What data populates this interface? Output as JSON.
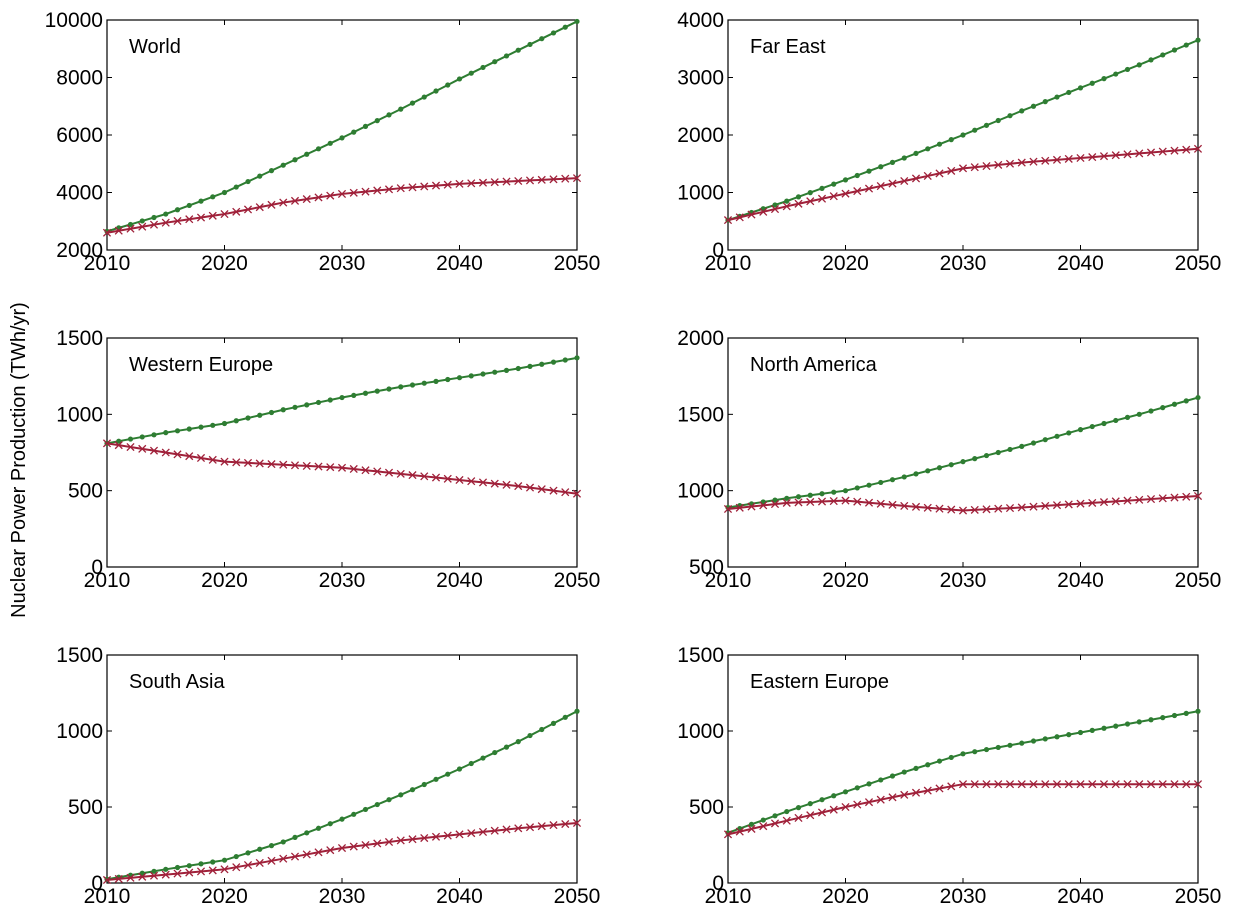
{
  "figure": {
    "ylabel": "Nuclear Power Production (TWh/yr)"
  },
  "colors": {
    "series_a": "#2e7d32",
    "series_b": "#a0213a"
  },
  "chart_data": [
    {
      "type": "line",
      "title": "World",
      "xlim": [
        2010,
        2050
      ],
      "ylim": [
        2000,
        10000
      ],
      "xticks": [
        "2010",
        "2020",
        "2030",
        "2040",
        "2050"
      ],
      "yticks": [
        "2000",
        "4000",
        "6000",
        "8000",
        "10000"
      ],
      "x": [
        2010,
        2015,
        2020,
        2025,
        2030,
        2035,
        2040,
        2045,
        2050
      ],
      "series": [
        {
          "marker": "dot",
          "values": [
            2650,
            3250,
            4000,
            4950,
            5900,
            6900,
            7950,
            8950,
            9950
          ]
        },
        {
          "marker": "x",
          "values": [
            2600,
            2950,
            3250,
            3650,
            3950,
            4150,
            4300,
            4400,
            4500
          ]
        }
      ]
    },
    {
      "type": "line",
      "title": "Far East",
      "xlim": [
        2010,
        2050
      ],
      "ylim": [
        0,
        4000
      ],
      "xticks": [
        "2010",
        "2020",
        "2030",
        "2040",
        "2050"
      ],
      "yticks": [
        "0",
        "1000",
        "2000",
        "3000",
        "4000"
      ],
      "x": [
        2010,
        2015,
        2020,
        2025,
        2030,
        2035,
        2040,
        2045,
        2050
      ],
      "series": [
        {
          "marker": "dot",
          "values": [
            520,
            850,
            1220,
            1600,
            2000,
            2420,
            2820,
            3220,
            3650
          ]
        },
        {
          "marker": "x",
          "values": [
            520,
            760,
            980,
            1200,
            1420,
            1520,
            1600,
            1680,
            1760
          ]
        }
      ]
    },
    {
      "type": "line",
      "title": "Western Europe",
      "xlim": [
        2010,
        2050
      ],
      "ylim": [
        0,
        1500
      ],
      "xticks": [
        "2010",
        "2020",
        "2030",
        "2040",
        "2050"
      ],
      "yticks": [
        "0",
        "500",
        "1000",
        "1500"
      ],
      "x": [
        2010,
        2015,
        2020,
        2025,
        2030,
        2035,
        2040,
        2045,
        2050
      ],
      "series": [
        {
          "marker": "dot",
          "values": [
            810,
            880,
            940,
            1030,
            1110,
            1180,
            1240,
            1300,
            1370
          ]
        },
        {
          "marker": "x",
          "values": [
            810,
            750,
            690,
            670,
            650,
            610,
            570,
            530,
            480
          ]
        }
      ]
    },
    {
      "type": "line",
      "title": "North America",
      "xlim": [
        2010,
        2050
      ],
      "ylim": [
        500,
        2000
      ],
      "xticks": [
        "2010",
        "2020",
        "2030",
        "2040",
        "2050"
      ],
      "yticks": [
        "500",
        "1000",
        "1500",
        "2000"
      ],
      "x": [
        2010,
        2015,
        2020,
        2025,
        2030,
        2035,
        2040,
        2045,
        2050
      ],
      "series": [
        {
          "marker": "dot",
          "values": [
            890,
            950,
            1000,
            1090,
            1190,
            1290,
            1400,
            1500,
            1610
          ]
        },
        {
          "marker": "x",
          "values": [
            880,
            920,
            935,
            900,
            870,
            890,
            915,
            940,
            965
          ]
        }
      ]
    },
    {
      "type": "line",
      "title": "South Asia",
      "xlim": [
        2010,
        2050
      ],
      "ylim": [
        0,
        1500
      ],
      "xticks": [
        "2010",
        "2020",
        "2030",
        "2040",
        "2050"
      ],
      "yticks": [
        "0",
        "500",
        "1000",
        "1500"
      ],
      "x": [
        2010,
        2015,
        2020,
        2025,
        2030,
        2035,
        2040,
        2045,
        2050
      ],
      "series": [
        {
          "marker": "dot",
          "values": [
            25,
            90,
            150,
            270,
            420,
            580,
            750,
            930,
            1130
          ]
        },
        {
          "marker": "x",
          "values": [
            20,
            55,
            90,
            160,
            230,
            280,
            320,
            360,
            395
          ]
        }
      ]
    },
    {
      "type": "line",
      "title": "Eastern Europe",
      "xlim": [
        2010,
        2050
      ],
      "ylim": [
        0,
        1500
      ],
      "xticks": [
        "2010",
        "2020",
        "2030",
        "2040",
        "2050"
      ],
      "yticks": [
        "0",
        "500",
        "1000",
        "1500"
      ],
      "x": [
        2010,
        2015,
        2020,
        2025,
        2030,
        2035,
        2040,
        2045,
        2050
      ],
      "series": [
        {
          "marker": "dot",
          "values": [
            330,
            470,
            600,
            730,
            850,
            920,
            990,
            1060,
            1130
          ]
        },
        {
          "marker": "x",
          "values": [
            320,
            410,
            500,
            580,
            650,
            650,
            650,
            650,
            650
          ]
        }
      ]
    }
  ]
}
